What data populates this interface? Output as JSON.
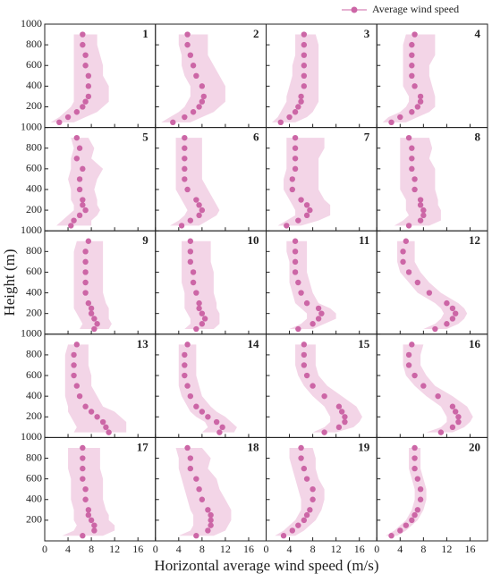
{
  "chart_data": {
    "type": "scatter",
    "xlabel": "Horizontal average wind speed (m/s)",
    "ylabel": "Height (m)",
    "legend": "Average wind speed",
    "color": "#cc66a6",
    "band_color": "#f3d5e7",
    "xlim": [
      0,
      19
    ],
    "xticks": [
      0,
      4,
      8,
      12,
      16
    ],
    "ylim": [
      0,
      1000
    ],
    "yticks": [
      200,
      400,
      600,
      800,
      1000
    ],
    "heights": [
      50,
      100,
      150,
      200,
      250,
      300,
      400,
      500,
      600,
      700,
      800,
      900
    ],
    "panels": [
      {
        "label": "1",
        "values": [
          2.5,
          4,
          5.5,
          6.5,
          7,
          7.5,
          7.5,
          7.5,
          7,
          7,
          6.5,
          6.5
        ],
        "low": [
          1,
          2.5,
          3.5,
          4.5,
          5,
          5,
          5,
          5,
          5,
          5,
          5,
          5
        ],
        "high": [
          5,
          7,
          9,
          10,
          11,
          11,
          11,
          10,
          10,
          9.5,
          9,
          9
        ]
      },
      {
        "label": "2",
        "values": [
          3,
          5,
          6.5,
          7.5,
          8,
          8.3,
          8,
          7,
          6.5,
          6,
          5.5,
          5.5
        ],
        "low": [
          1,
          2.5,
          4,
          5,
          5.5,
          6,
          6,
          5,
          4.5,
          4.5,
          4,
          4
        ],
        "high": [
          6,
          8,
          10,
          11,
          12,
          12,
          12,
          11,
          10,
          9,
          9,
          9
        ]
      },
      {
        "label": "3",
        "values": [
          2.5,
          4,
          5,
          5.5,
          6,
          6,
          6.5,
          6.5,
          6.5,
          6.5,
          6.5,
          6.5
        ],
        "low": [
          1,
          2,
          2.5,
          3,
          3.5,
          3.5,
          4,
          4.5,
          4.5,
          5,
          5,
          5
        ],
        "high": [
          5,
          7,
          8,
          8.5,
          9,
          9,
          9,
          9,
          9,
          9,
          9,
          8.5
        ]
      },
      {
        "label": "4",
        "values": [
          2.5,
          4,
          6,
          7,
          7.5,
          7.5,
          6.5,
          6,
          6,
          6,
          6,
          6.5
        ],
        "low": [
          1,
          2,
          4,
          5,
          5.5,
          5.5,
          4.5,
          4.5,
          4.5,
          4.5,
          4.5,
          5
        ],
        "high": [
          5,
          7,
          9,
          10,
          10,
          10,
          9.5,
          9,
          9,
          10,
          10,
          10
        ]
      },
      {
        "label": "5",
        "values": [
          4.5,
          5,
          6,
          7,
          6.5,
          6.5,
          6,
          6,
          6.5,
          5.5,
          6,
          5.5
        ],
        "low": [
          2,
          3,
          4,
          5,
          5,
          4.5,
          4.5,
          4,
          4.5,
          4.5,
          5,
          4.5
        ],
        "high": [
          8,
          8,
          9,
          9.5,
          9,
          9,
          8.5,
          9,
          10,
          8,
          8.5,
          7.5
        ]
      },
      {
        "label": "6",
        "values": [
          4.5,
          6,
          7.5,
          8,
          7.5,
          7,
          5.5,
          5,
          5,
          5,
          5,
          5
        ],
        "low": [
          2.5,
          4,
          5,
          5.5,
          5,
          4.5,
          3.5,
          3.5,
          3.5,
          3.5,
          3.5,
          3.5
        ],
        "high": [
          7.5,
          9,
          10.5,
          11,
          10.5,
          10,
          9,
          8,
          8,
          8,
          8,
          8
        ]
      },
      {
        "label": "7",
        "values": [
          3.5,
          5.5,
          7,
          7.5,
          7,
          6,
          4.5,
          4.5,
          5,
          5,
          5,
          5
        ],
        "low": [
          2,
          3.5,
          5,
          5,
          4.5,
          4,
          3,
          3,
          3.5,
          3.5,
          3.5,
          3.5
        ],
        "high": [
          6,
          9,
          11,
          11,
          11,
          10,
          9,
          9,
          9,
          9,
          10,
          10
        ]
      },
      {
        "label": "8",
        "values": [
          5.5,
          7.5,
          8,
          8,
          7.5,
          7.5,
          6.5,
          6.5,
          6,
          6,
          6,
          5.5
        ],
        "low": [
          3,
          4.5,
          5.5,
          5,
          5,
          5,
          4,
          4,
          4,
          4,
          4,
          4
        ],
        "high": [
          9,
          11,
          11,
          11,
          10.5,
          10.5,
          10,
          10,
          10,
          9,
          9.5,
          9
        ]
      },
      {
        "label": "9",
        "values": [
          8.5,
          9,
          8.5,
          8,
          8,
          7.5,
          7,
          7,
          7,
          7,
          7,
          7.5
        ],
        "low": [
          6,
          6.5,
          6,
          5.5,
          5,
          5,
          5,
          5,
          5,
          5,
          5,
          5.5
        ],
        "high": [
          11,
          11.5,
          11,
          11,
          11,
          10.5,
          10,
          10,
          10,
          10,
          10,
          10
        ]
      },
      {
        "label": "10",
        "values": [
          7,
          8,
          8.5,
          8,
          7.5,
          7.5,
          7,
          6.5,
          6.5,
          6,
          6,
          6
        ],
        "low": [
          5,
          6,
          6,
          5.5,
          5,
          5,
          5,
          4.5,
          4.5,
          4.5,
          4.5,
          4.5
        ],
        "high": [
          10,
          11,
          11,
          11,
          10.5,
          10.5,
          10,
          10,
          10,
          9.5,
          9.5,
          9.5
        ]
      },
      {
        "label": "11",
        "values": [
          5.5,
          8,
          9,
          9.5,
          9,
          7,
          6,
          5.5,
          5,
          5,
          5,
          5
        ],
        "low": [
          4,
          6,
          7,
          7,
          6,
          5,
          4.5,
          4,
          4,
          4,
          3.5,
          3.5
        ],
        "high": [
          8,
          10,
          12,
          12,
          11,
          9,
          8,
          7.5,
          7,
          7,
          7,
          7
        ]
      },
      {
        "label": "12",
        "values": [
          10,
          12,
          13,
          13.5,
          13,
          12,
          9,
          7,
          5.5,
          4.5,
          4.5,
          5
        ],
        "low": [
          8,
          10,
          11,
          11.5,
          11,
          10,
          7,
          5.5,
          4,
          3.5,
          3.5,
          3.5
        ],
        "high": [
          12,
          14,
          15,
          15.5,
          15,
          14,
          11,
          9,
          7.5,
          6.5,
          6.5,
          6.5
        ]
      },
      {
        "label": "13",
        "values": [
          11,
          10.5,
          10,
          9,
          8,
          7,
          6,
          5.5,
          5,
          5,
          5,
          5.5
        ],
        "low": [
          5,
          5.5,
          5,
          4.5,
          4,
          4,
          3.5,
          3.5,
          3.5,
          3.5,
          3.5,
          4
        ],
        "high": [
          14,
          14,
          14,
          13,
          12,
          10,
          9,
          8,
          8,
          7.5,
          7.5,
          7.5
        ]
      },
      {
        "label": "14",
        "values": [
          11,
          11.5,
          10.5,
          9,
          8,
          7,
          6,
          5.5,
          5,
          5,
          5,
          5.5
        ],
        "low": [
          8,
          9,
          8.5,
          7,
          6,
          5.5,
          4.5,
          4,
          4,
          4,
          4,
          4
        ],
        "high": [
          13.5,
          14,
          13,
          12,
          10.5,
          9.5,
          8,
          7.5,
          7,
          7,
          7,
          7
        ]
      },
      {
        "label": "15",
        "values": [
          10,
          12.5,
          13.5,
          13.5,
          13,
          12.5,
          10,
          8,
          7,
          6.5,
          6.5,
          6.5
        ],
        "low": [
          8,
          10,
          11,
          11,
          10.5,
          10,
          8,
          6.5,
          5.5,
          5,
          5,
          5
        ],
        "high": [
          12,
          15,
          16,
          16.5,
          16,
          15.5,
          13,
          10.5,
          9,
          8.5,
          8.5,
          8.5
        ]
      },
      {
        "label": "16",
        "values": [
          11,
          13,
          14,
          14,
          13.5,
          13,
          10.5,
          8,
          6.5,
          5.5,
          5.5,
          6
        ],
        "low": [
          8.5,
          11,
          12,
          12,
          11.5,
          11,
          8.5,
          6.5,
          5,
          4.5,
          4.5,
          4.5
        ],
        "high": [
          13,
          15,
          16,
          16.5,
          16,
          15.5,
          13,
          10,
          8.5,
          7.5,
          7.5,
          8
        ]
      },
      {
        "label": "17",
        "values": [
          6.5,
          8.5,
          8.5,
          8,
          7.5,
          7.5,
          7,
          7,
          6.5,
          6.5,
          6.5,
          6.5
        ],
        "low": [
          3,
          5,
          5.5,
          5,
          5,
          5,
          4.5,
          4.5,
          4.5,
          4,
          4,
          4
        ],
        "high": [
          10,
          12,
          12,
          11,
          11,
          10.5,
          10,
          10,
          10,
          9.5,
          9.5,
          9.5
        ]
      },
      {
        "label": "18",
        "values": [
          7,
          9,
          9.5,
          9.5,
          9.5,
          9,
          8,
          7.5,
          7,
          6,
          6,
          5.5
        ],
        "low": [
          4,
          6,
          6.5,
          6.5,
          6.5,
          6,
          5.5,
          5,
          4.5,
          4,
          4,
          3.5
        ],
        "high": [
          10,
          12,
          12.5,
          13,
          13,
          13,
          12,
          11,
          10.5,
          9,
          9.5,
          8
        ]
      },
      {
        "label": "19",
        "values": [
          3,
          4.5,
          5.5,
          6.5,
          7,
          7.5,
          8,
          8,
          7,
          6.5,
          6,
          6
        ],
        "low": [
          1.5,
          3,
          4,
          5,
          5.5,
          6,
          6,
          5.5,
          5,
          4.5,
          4,
          4
        ],
        "high": [
          5,
          6.5,
          7.5,
          8.5,
          9,
          9.5,
          10,
          10,
          9,
          8.5,
          8.5,
          8
        ]
      },
      {
        "label": "20",
        "values": [
          2.5,
          4,
          5,
          6,
          6.5,
          7,
          7.5,
          7.5,
          7,
          6.5,
          6.5,
          6.5
        ],
        "low": [
          1.5,
          3,
          4,
          5,
          5.5,
          6,
          6.5,
          6.5,
          6,
          5.5,
          5.5,
          5.5
        ],
        "high": [
          3.5,
          5,
          6,
          7,
          7.5,
          8,
          8.5,
          8.5,
          8,
          7.5,
          7.5,
          7.5
        ]
      }
    ]
  }
}
